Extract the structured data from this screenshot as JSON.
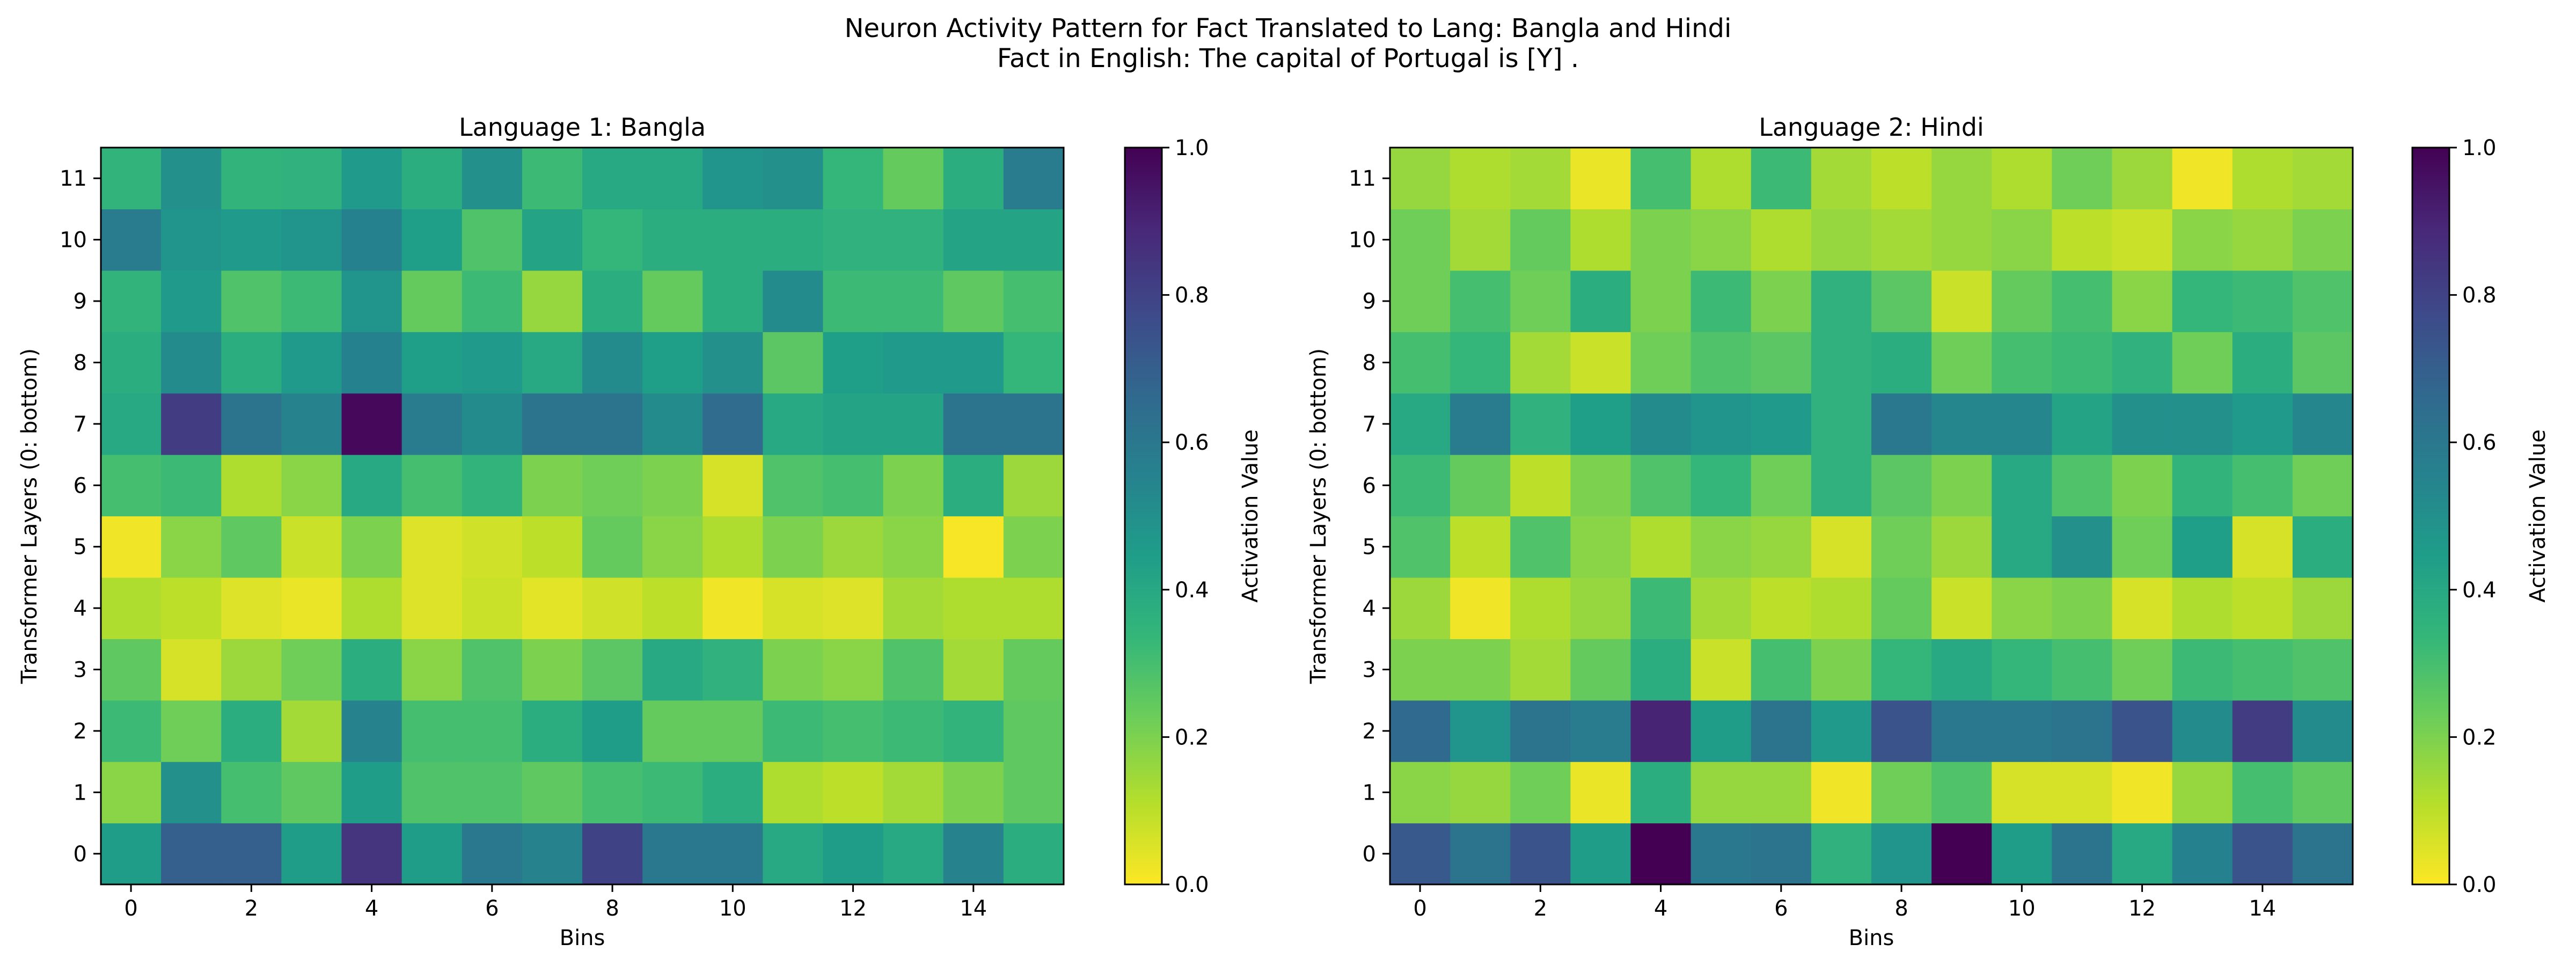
{
  "figure": {
    "title_line1": "Neuron Activity Pattern for Fact Translated to Lang: Bangla and Hindi",
    "title_line2": "Fact in English: The capital of Portugal is [Y] ."
  },
  "colormap": [
    "#fde725",
    "#b5de2b",
    "#6ece58",
    "#35b779",
    "#1f9e89",
    "#26828e",
    "#31688e",
    "#3e4989",
    "#482878",
    "#440154"
  ],
  "chart_data": [
    {
      "type": "heatmap",
      "title": "Language 1: Bangla",
      "xlabel": "Bins",
      "ylabel": "Transformer Layers (0: bottom)",
      "colorbar_label": "Activation Value",
      "colorbar_ticks": [
        "0.0",
        "0.2",
        "0.4",
        "0.6",
        "0.8",
        "1.0"
      ],
      "x_tick_labels": [
        "0",
        "2",
        "4",
        "6",
        "8",
        "10",
        "12",
        "14"
      ],
      "y_tick_labels": [
        "0",
        "1",
        "2",
        "3",
        "4",
        "5",
        "6",
        "7",
        "8",
        "9",
        "10",
        "11"
      ],
      "vmin": 0.0,
      "vmax": 1.0,
      "n_bins": 16,
      "n_layers": 12,
      "values": [
        [
          0.45,
          0.7,
          0.7,
          0.45,
          0.85,
          0.45,
          0.6,
          0.55,
          0.8,
          0.6,
          0.6,
          0.4,
          0.45,
          0.4,
          0.55,
          0.38
        ],
        [
          0.18,
          0.5,
          0.3,
          0.25,
          0.45,
          0.28,
          0.28,
          0.25,
          0.3,
          0.32,
          0.38,
          0.12,
          0.1,
          0.14,
          0.2,
          0.25
        ],
        [
          0.32,
          0.22,
          0.38,
          0.14,
          0.55,
          0.3,
          0.3,
          0.38,
          0.45,
          0.24,
          0.24,
          0.32,
          0.3,
          0.32,
          0.35,
          0.25
        ],
        [
          0.25,
          0.06,
          0.15,
          0.22,
          0.38,
          0.18,
          0.28,
          0.2,
          0.26,
          0.4,
          0.36,
          0.2,
          0.18,
          0.28,
          0.14,
          0.24
        ],
        [
          0.12,
          0.1,
          0.05,
          0.03,
          0.12,
          0.05,
          0.08,
          0.04,
          0.07,
          0.1,
          0.02,
          0.06,
          0.05,
          0.14,
          0.12,
          0.12
        ],
        [
          0.02,
          0.18,
          0.25,
          0.08,
          0.2,
          0.05,
          0.07,
          0.1,
          0.24,
          0.18,
          0.12,
          0.2,
          0.15,
          0.18,
          0.01,
          0.2
        ],
        [
          0.3,
          0.32,
          0.12,
          0.18,
          0.4,
          0.3,
          0.35,
          0.2,
          0.22,
          0.2,
          0.06,
          0.28,
          0.3,
          0.2,
          0.38,
          0.15
        ],
        [
          0.4,
          0.82,
          0.62,
          0.55,
          0.98,
          0.58,
          0.52,
          0.62,
          0.62,
          0.52,
          0.65,
          0.4,
          0.42,
          0.42,
          0.62,
          0.62
        ],
        [
          0.38,
          0.52,
          0.38,
          0.46,
          0.56,
          0.44,
          0.46,
          0.4,
          0.52,
          0.44,
          0.5,
          0.26,
          0.44,
          0.46,
          0.46,
          0.34
        ],
        [
          0.35,
          0.46,
          0.28,
          0.32,
          0.48,
          0.24,
          0.32,
          0.16,
          0.38,
          0.24,
          0.38,
          0.52,
          0.32,
          0.32,
          0.25,
          0.3
        ],
        [
          0.58,
          0.48,
          0.46,
          0.48,
          0.56,
          0.44,
          0.28,
          0.42,
          0.34,
          0.38,
          0.38,
          0.38,
          0.36,
          0.36,
          0.42,
          0.42
        ],
        [
          0.35,
          0.5,
          0.35,
          0.36,
          0.46,
          0.38,
          0.5,
          0.32,
          0.4,
          0.4,
          0.48,
          0.5,
          0.34,
          0.24,
          0.38,
          0.58
        ]
      ]
    },
    {
      "type": "heatmap",
      "title": "Language 2: Hindi",
      "xlabel": "Bins",
      "ylabel": "Transformer Layers (0: bottom)",
      "colorbar_label": "Activation Value",
      "colorbar_ticks": [
        "0.0",
        "0.2",
        "0.4",
        "0.6",
        "0.8",
        "1.0"
      ],
      "x_tick_labels": [
        "0",
        "2",
        "4",
        "6",
        "8",
        "10",
        "12",
        "14"
      ],
      "y_tick_labels": [
        "0",
        "1",
        "2",
        "3",
        "4",
        "5",
        "6",
        "7",
        "8",
        "9",
        "10",
        "11"
      ],
      "vmin": 0.0,
      "vmax": 1.0,
      "n_bins": 16,
      "n_layers": 12,
      "values": [
        [
          0.72,
          0.62,
          0.74,
          0.45,
          1.0,
          0.6,
          0.62,
          0.36,
          0.48,
          1.0,
          0.45,
          0.62,
          0.4,
          0.56,
          0.74,
          0.62
        ],
        [
          0.18,
          0.16,
          0.22,
          0.03,
          0.38,
          0.16,
          0.16,
          0.02,
          0.22,
          0.28,
          0.06,
          0.06,
          0.02,
          0.16,
          0.3,
          0.25
        ],
        [
          0.66,
          0.48,
          0.62,
          0.58,
          0.9,
          0.45,
          0.62,
          0.46,
          0.74,
          0.6,
          0.6,
          0.62,
          0.74,
          0.52,
          0.82,
          0.52
        ],
        [
          0.2,
          0.2,
          0.14,
          0.24,
          0.38,
          0.08,
          0.3,
          0.2,
          0.34,
          0.4,
          0.34,
          0.3,
          0.22,
          0.32,
          0.3,
          0.28
        ],
        [
          0.15,
          0.02,
          0.12,
          0.16,
          0.32,
          0.14,
          0.1,
          0.12,
          0.24,
          0.08,
          0.18,
          0.2,
          0.06,
          0.12,
          0.1,
          0.15
        ],
        [
          0.28,
          0.1,
          0.28,
          0.18,
          0.12,
          0.18,
          0.16,
          0.06,
          0.22,
          0.15,
          0.4,
          0.5,
          0.22,
          0.44,
          0.06,
          0.38
        ],
        [
          0.32,
          0.24,
          0.1,
          0.2,
          0.28,
          0.34,
          0.22,
          0.36,
          0.26,
          0.2,
          0.4,
          0.28,
          0.2,
          0.35,
          0.3,
          0.22
        ],
        [
          0.4,
          0.58,
          0.36,
          0.44,
          0.52,
          0.48,
          0.46,
          0.36,
          0.6,
          0.54,
          0.54,
          0.42,
          0.5,
          0.5,
          0.46,
          0.54
        ],
        [
          0.3,
          0.34,
          0.14,
          0.08,
          0.22,
          0.28,
          0.26,
          0.36,
          0.38,
          0.22,
          0.3,
          0.32,
          0.36,
          0.22,
          0.38,
          0.26
        ],
        [
          0.22,
          0.3,
          0.22,
          0.38,
          0.2,
          0.32,
          0.2,
          0.36,
          0.26,
          0.08,
          0.24,
          0.3,
          0.18,
          0.34,
          0.32,
          0.28
        ],
        [
          0.22,
          0.14,
          0.24,
          0.12,
          0.2,
          0.18,
          0.12,
          0.16,
          0.14,
          0.16,
          0.18,
          0.1,
          0.08,
          0.18,
          0.16,
          0.2
        ],
        [
          0.16,
          0.12,
          0.14,
          0.03,
          0.3,
          0.12,
          0.32,
          0.14,
          0.1,
          0.16,
          0.12,
          0.22,
          0.15,
          0.02,
          0.12,
          0.14
        ]
      ]
    }
  ]
}
